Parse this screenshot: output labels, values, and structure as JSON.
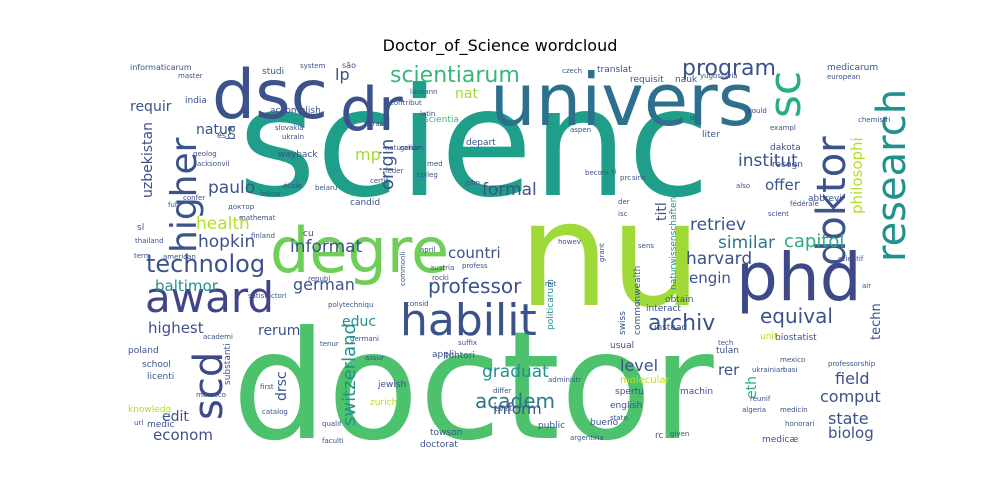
{
  "chart_data": {
    "type": "wordcloud",
    "title": "Doctor_of_Science wordcloud",
    "background": "#ffffff",
    "palette": [
      "#440154",
      "#482878",
      "#3e4989",
      "#31688e",
      "#26828e",
      "#1f9e89",
      "#35b779",
      "#6ece58",
      "#b5de2b",
      "#fde725"
    ],
    "words": [
      {
        "text": "scienc",
        "weight": 100,
        "color": "#1f9e89"
      },
      {
        "text": "doctor",
        "weight": 98,
        "color": "#4cc26c"
      },
      {
        "text": "nu",
        "weight": 70,
        "color": "#a0da39"
      },
      {
        "text": "univers",
        "weight": 52,
        "color": "#2d708e"
      },
      {
        "text": "degre",
        "weight": 46,
        "color": "#6ece58"
      },
      {
        "text": "dsc",
        "weight": 44,
        "color": "#3b528b"
      },
      {
        "text": "phd",
        "weight": 40,
        "color": "#3e4989"
      },
      {
        "text": "dr",
        "weight": 38,
        "color": "#3b528b"
      },
      {
        "text": "award",
        "weight": 34,
        "color": "#414487"
      },
      {
        "text": "research",
        "weight": 32,
        "color": "#21918c"
      },
      {
        "text": "habilit",
        "weight": 30,
        "color": "#3b528b"
      },
      {
        "text": "sc",
        "weight": 30,
        "color": "#27ad81"
      },
      {
        "text": "doktor",
        "weight": 28,
        "color": "#3b528b"
      },
      {
        "text": "higher",
        "weight": 28,
        "color": "#3b528b"
      },
      {
        "text": "scd",
        "weight": 28,
        "color": "#3e4989"
      },
      {
        "text": "technolog",
        "weight": 18,
        "color": "#3b528b"
      },
      {
        "text": "professor",
        "weight": 16,
        "color": "#3b528b"
      },
      {
        "text": "archiv",
        "weight": 16,
        "color": "#3b528b"
      },
      {
        "text": "program",
        "weight": 16,
        "color": "#3b528b"
      },
      {
        "text": "scientiarum",
        "weight": 16,
        "color": "#35b779"
      },
      {
        "text": "academ",
        "weight": 15,
        "color": "#2a788e"
      },
      {
        "text": "switzerland",
        "weight": 14,
        "color": "#21918c"
      },
      {
        "text": "equival",
        "weight": 14,
        "color": "#3b528b"
      },
      {
        "text": "origin",
        "weight": 14,
        "color": "#3b528b"
      },
      {
        "text": "capitol",
        "weight": 14,
        "color": "#27ad81"
      },
      {
        "text": "hopkin",
        "weight": 13,
        "color": "#3b528b"
      },
      {
        "text": "health",
        "weight": 13,
        "color": "#b5de2b"
      },
      {
        "text": "institut",
        "weight": 13,
        "color": "#3b528b"
      },
      {
        "text": "harvard",
        "weight": 13,
        "color": "#3b528b"
      },
      {
        "text": "similar",
        "weight": 13,
        "color": "#2a788e"
      },
      {
        "text": "retriev",
        "weight": 13,
        "color": "#3b528b"
      },
      {
        "text": "formal",
        "weight": 13,
        "color": "#3b528b"
      },
      {
        "text": "graduat",
        "weight": 13,
        "color": "#21918c"
      },
      {
        "text": "paulo",
        "weight": 13,
        "color": "#3b528b"
      },
      {
        "text": "informat",
        "weight": 13,
        "color": "#3b528b"
      },
      {
        "text": "german",
        "weight": 12,
        "color": "#3b528b"
      },
      {
        "text": "highest",
        "weight": 12,
        "color": "#3b528b"
      },
      {
        "text": "baltimor",
        "weight": 12,
        "color": "#21918c"
      },
      {
        "text": "philosophi",
        "weight": 12,
        "color": "#b5de2b"
      },
      {
        "text": "state",
        "weight": 12,
        "color": "#3b528b"
      },
      {
        "text": "comput",
        "weight": 12,
        "color": "#3b528b"
      },
      {
        "text": "field",
        "weight": 12,
        "color": "#3b528b"
      },
      {
        "text": "biolog",
        "weight": 12,
        "color": "#3b528b"
      },
      {
        "text": "econom",
        "weight": 12,
        "color": "#3b528b"
      },
      {
        "text": "inform",
        "weight": 12,
        "color": "#3b528b"
      },
      {
        "text": "level",
        "weight": 12,
        "color": "#3b528b"
      },
      {
        "text": "engin",
        "weight": 12,
        "color": "#3b528b"
      },
      {
        "text": "offer",
        "weight": 12,
        "color": "#3b528b"
      },
      {
        "text": "countri",
        "weight": 12,
        "color": "#3b528b"
      },
      {
        "text": "uzbekistan",
        "weight": 11,
        "color": "#3b528b"
      },
      {
        "text": "requir",
        "weight": 11,
        "color": "#3b528b"
      },
      {
        "text": "natur",
        "weight": 11,
        "color": "#3b528b"
      },
      {
        "text": "rerum",
        "weight": 11,
        "color": "#3b528b"
      },
      {
        "text": "edit",
        "weight": 11,
        "color": "#3b528b"
      },
      {
        "text": "educ",
        "weight": 11,
        "color": "#21918c"
      },
      {
        "text": "drsc",
        "weight": 11,
        "color": "#3b528b"
      },
      {
        "text": "eth",
        "weight": 11,
        "color": "#27ad81"
      },
      {
        "text": "rer",
        "weight": 11,
        "color": "#3b528b"
      },
      {
        "text": "titl",
        "weight": 11,
        "color": "#3b528b"
      },
      {
        "text": "techn",
        "weight": 11,
        "color": "#3b528b"
      },
      {
        "text": "mp",
        "weight": 11,
        "color": "#a0da39"
      },
      {
        "text": "nat",
        "weight": 11,
        "color": "#a0da39"
      },
      {
        "text": "lp",
        "weight": 11,
        "color": "#3b528b"
      },
      {
        "text": "ba",
        "weight": 10,
        "color": "#3b528b"
      },
      {
        "text": "tohtori",
        "weight": 7,
        "color": "#3b528b"
      },
      {
        "text": "jewish",
        "weight": 7,
        "color": "#3b528b"
      },
      {
        "text": "zurich",
        "weight": 7,
        "color": "#b5de2b"
      },
      {
        "text": "towson",
        "weight": 7,
        "color": "#3b528b"
      },
      {
        "text": "doctorat",
        "weight": 7,
        "color": "#3b528b"
      },
      {
        "text": "public",
        "weight": 7,
        "color": "#3b528b"
      },
      {
        "text": "bueno",
        "weight": 7,
        "color": "#3b528b"
      },
      {
        "text": "argentina",
        "weight": 6,
        "color": "#3b528b"
      },
      {
        "text": "english",
        "weight": 7,
        "color": "#3b528b"
      },
      {
        "text": "spertu",
        "weight": 7,
        "color": "#3b528b"
      },
      {
        "text": "molecular",
        "weight": 7,
        "color": "#b5de2b"
      },
      {
        "text": "machin",
        "weight": 7,
        "color": "#3b528b"
      },
      {
        "text": "tulan",
        "weight": 7,
        "color": "#3b528b"
      },
      {
        "text": "biostatist",
        "weight": 7,
        "color": "#3b528b"
      },
      {
        "text": "usual",
        "weight": 7,
        "color": "#3b528b"
      },
      {
        "text": "obtain",
        "weight": 7,
        "color": "#3b528b"
      },
      {
        "text": "interact",
        "weight": 7,
        "color": "#3b528b"
      },
      {
        "text": "swiss",
        "weight": 7,
        "color": "#3b528b"
      },
      {
        "text": "instead",
        "weight": 7,
        "color": "#3b528b"
      },
      {
        "text": "commonwealth",
        "weight": 7,
        "color": "#3b528b"
      },
      {
        "text": "politicarum",
        "weight": 7,
        "color": "#21918c"
      },
      {
        "text": "naturwissenschaften",
        "weight": 7,
        "color": "#21918c"
      },
      {
        "text": "scientia",
        "weight": 7,
        "color": "#35b779"
      },
      {
        "text": "depart",
        "weight": 7,
        "color": "#3b528b"
      },
      {
        "text": "liter",
        "weight": 7,
        "color": "#3b528b"
      },
      {
        "text": "dakota",
        "weight": 7,
        "color": "#3b528b"
      },
      {
        "text": "recogn",
        "weight": 7,
        "color": "#3b528b"
      },
      {
        "text": "abbrevi",
        "weight": 7,
        "color": "#3b528b"
      },
      {
        "text": "medicarum",
        "weight": 7,
        "color": "#3b528b"
      },
      {
        "text": "european",
        "weight": 6,
        "color": "#3b528b"
      },
      {
        "text": "nauk",
        "weight": 7,
        "color": "#3b528b"
      },
      {
        "text": "requisit",
        "weight": 7,
        "color": "#3b528b"
      },
      {
        "text": "translat",
        "weight": 7,
        "color": "#3b528b"
      },
      {
        "text": "yugoslavia",
        "weight": 6,
        "color": "#3b528b"
      },
      {
        "text": "informaticarum",
        "weight": 7,
        "color": "#3b528b"
      },
      {
        "text": "studi",
        "weight": 7,
        "color": "#3b528b"
      },
      {
        "text": "system",
        "weight": 6,
        "color": "#3b528b"
      },
      {
        "text": "são",
        "weight": 7,
        "color": "#3b528b"
      },
      {
        "text": "czech",
        "weight": 6,
        "color": "#3b528b"
      },
      {
        "text": "lausann",
        "weight": 6,
        "color": "#3b528b"
      },
      {
        "text": "latin",
        "weight": 6,
        "color": "#3b528b"
      },
      {
        "text": "contribut",
        "weight": 6,
        "color": "#3b528b"
      },
      {
        "text": "accomplish",
        "weight": 7,
        "color": "#3b528b"
      },
      {
        "text": "slovakia",
        "weight": 6,
        "color": "#3b528b"
      },
      {
        "text": "ukrain",
        "weight": 6,
        "color": "#3b528b"
      },
      {
        "text": "wayback",
        "weight": 7,
        "color": "#3b528b"
      },
      {
        "text": "geolog",
        "weight": 6,
        "color": "#3b528b"
      },
      {
        "text": "jacksonvil",
        "weight": 6,
        "color": "#3b528b"
      },
      {
        "text": "india",
        "weight": 7,
        "color": "#3b528b"
      },
      {
        "text": "master",
        "weight": 6,
        "color": "#3b528b"
      },
      {
        "text": "és",
        "weight": 6,
        "color": "#3b528b"
      },
      {
        "text": "confer",
        "weight": 6,
        "color": "#3b528b"
      },
      {
        "text": "full",
        "weight": 6,
        "color": "#3b528b"
      },
      {
        "text": "доктор",
        "weight": 6,
        "color": "#3b528b"
      },
      {
        "text": "follow",
        "weight": 6,
        "color": "#3b528b"
      },
      {
        "text": "école",
        "weight": 6,
        "color": "#3b528b"
      },
      {
        "text": "belaru",
        "weight": 6,
        "color": "#3b528b"
      },
      {
        "text": "candid",
        "weight": 7,
        "color": "#3b528b"
      },
      {
        "text": "certif",
        "weight": 6,
        "color": "#3b528b"
      },
      {
        "text": "naturalium",
        "weight": 6,
        "color": "#3b528b"
      },
      {
        "text": "med",
        "weight": 6,
        "color": "#3b528b"
      },
      {
        "text": "mathemat",
        "weight": 6,
        "color": "#3b528b"
      },
      {
        "text": "sl",
        "weight": 7,
        "color": "#3b528b"
      },
      {
        "text": "thailand",
        "weight": 6,
        "color": "#3b528b"
      },
      {
        "text": "term",
        "weight": 6,
        "color": "#3b528b"
      },
      {
        "text": "american",
        "weight": 6,
        "color": "#3b528b"
      },
      {
        "text": "finland",
        "weight": 6,
        "color": "#3b528b"
      },
      {
        "text": "satisfactori",
        "weight": 6,
        "color": "#3b528b"
      },
      {
        "text": "republ",
        "weight": 6,
        "color": "#3b528b"
      },
      {
        "text": "cu",
        "weight": 7,
        "color": "#3b528b"
      },
      {
        "text": "polytechniqu",
        "weight": 6,
        "color": "#3b528b"
      },
      {
        "text": "germani",
        "weight": 6,
        "color": "#3b528b"
      },
      {
        "text": "consid",
        "weight": 6,
        "color": "#3b528b"
      },
      {
        "text": "rocki",
        "weight": 6,
        "color": "#3b528b"
      },
      {
        "text": "austria",
        "weight": 6,
        "color": "#3b528b"
      },
      {
        "text": "profess",
        "weight": 6,
        "color": "#3b528b"
      },
      {
        "text": "april",
        "weight": 6,
        "color": "#3b528b"
      },
      {
        "text": "commonli",
        "weight": 6,
        "color": "#3b528b"
      },
      {
        "text": "howev",
        "weight": 6,
        "color": "#3b528b"
      },
      {
        "text": "poland",
        "weight": 7,
        "color": "#3b528b"
      },
      {
        "text": "school",
        "weight": 7,
        "color": "#3b528b"
      },
      {
        "text": "licenti",
        "weight": 7,
        "color": "#3b528b"
      },
      {
        "text": "substanti",
        "weight": 7,
        "color": "#3b528b"
      },
      {
        "text": "knowledg",
        "weight": 7,
        "color": "#b5de2b"
      },
      {
        "text": "medic",
        "weight": 7,
        "color": "#3b528b"
      },
      {
        "text": "url",
        "weight": 6,
        "color": "#3b528b"
      },
      {
        "text": "morocco",
        "weight": 6,
        "color": "#3b528b"
      },
      {
        "text": "catalog",
        "weight": 6,
        "color": "#3b528b"
      },
      {
        "text": "first",
        "weight": 6,
        "color": "#3b528b"
      },
      {
        "text": "qualif",
        "weight": 6,
        "color": "#3b528b"
      },
      {
        "text": "faculti",
        "weight": 6,
        "color": "#3b528b"
      },
      {
        "text": "assur",
        "weight": 6,
        "color": "#3b528b"
      },
      {
        "text": "appli",
        "weight": 7,
        "color": "#3b528b"
      },
      {
        "text": "suffix",
        "weight": 6,
        "color": "#3b528b"
      },
      {
        "text": "administr",
        "weight": 6,
        "color": "#3b528b"
      },
      {
        "text": "differ",
        "weight": 6,
        "color": "#3b528b"
      },
      {
        "text": "evalu",
        "weight": 6,
        "color": "#3b528b"
      },
      {
        "text": "rc",
        "weight": 7,
        "color": "#3b528b"
      },
      {
        "text": "given",
        "weight": 6,
        "color": "#3b528b"
      },
      {
        "text": "medicæ",
        "weight": 7,
        "color": "#3b528b"
      },
      {
        "text": "honorari",
        "weight": 6,
        "color": "#3b528b"
      },
      {
        "text": "medicin",
        "weight": 6,
        "color": "#3b528b"
      },
      {
        "text": "algeria",
        "weight": 6,
        "color": "#3b528b"
      },
      {
        "text": "reunif",
        "weight": 6,
        "color": "#3b528b"
      },
      {
        "text": "ukrainian",
        "weight": 6,
        "color": "#3b528b"
      },
      {
        "text": "basi",
        "weight": 6,
        "color": "#3b528b"
      },
      {
        "text": "mexico",
        "weight": 6,
        "color": "#3b528b"
      },
      {
        "text": "unit",
        "weight": 7,
        "color": "#b5de2b"
      },
      {
        "text": "tech",
        "weight": 6,
        "color": "#3b528b"
      },
      {
        "text": "professorship",
        "weight": 6,
        "color": "#3b528b"
      },
      {
        "text": "air",
        "weight": 6,
        "color": "#3b528b"
      },
      {
        "text": "scientif",
        "weight": 6,
        "color": "#3b528b"
      },
      {
        "text": "scient",
        "weight": 6,
        "color": "#3b528b"
      },
      {
        "text": "fédérale",
        "weight": 6,
        "color": "#3b528b"
      },
      {
        "text": "exampl",
        "weight": 6,
        "color": "#3b528b"
      },
      {
        "text": "would",
        "weight": 6,
        "color": "#3b528b"
      },
      {
        "text": "also",
        "weight": 6,
        "color": "#3b528b"
      },
      {
        "text": "chemistri",
        "weight": 6,
        "color": "#3b528b"
      },
      {
        "text": "sens",
        "weight": 6,
        "color": "#3b528b"
      },
      {
        "text": "isc",
        "weight": 6,
        "color": "#3b528b"
      },
      {
        "text": "der",
        "weight": 6,
        "color": "#3b528b"
      },
      {
        "text": "aspen",
        "weight": 6,
        "color": "#3b528b"
      },
      {
        "text": "brazil",
        "weight": 6,
        "color": "#3b528b"
      },
      {
        "text": "john",
        "weight": 6,
        "color": "#3b528b"
      },
      {
        "text": "colleg",
        "weight": 6,
        "color": "#3b528b"
      },
      {
        "text": "tenur",
        "weight": 6,
        "color": "#3b528b"
      },
      {
        "text": "academi",
        "weight": 6,
        "color": "#3b528b"
      },
      {
        "text": "mit",
        "weight": 6,
        "color": "#3b528b"
      },
      {
        "text": "grant",
        "weight": 6,
        "color": "#3b528b"
      },
      {
        "text": "genar",
        "weight": 6,
        "color": "#3b528b"
      },
      {
        "text": "sinc",
        "weight": 6,
        "color": "#3b528b"
      },
      {
        "text": "prc",
        "weight": 6,
        "color": "#3b528b"
      },
      {
        "text": "becom",
        "weight": 6,
        "color": "#3b528b"
      },
      {
        "text": "ti",
        "weight": 6,
        "color": "#3b528b"
      },
      {
        "text": "feder",
        "weight": 6,
        "color": "#3b528b"
      },
      {
        "text": "dr.",
        "weight": 6,
        "color": "#3b528b"
      },
      {
        "text": "state.",
        "weight": 6,
        "color": "#3b528b"
      }
    ]
  }
}
